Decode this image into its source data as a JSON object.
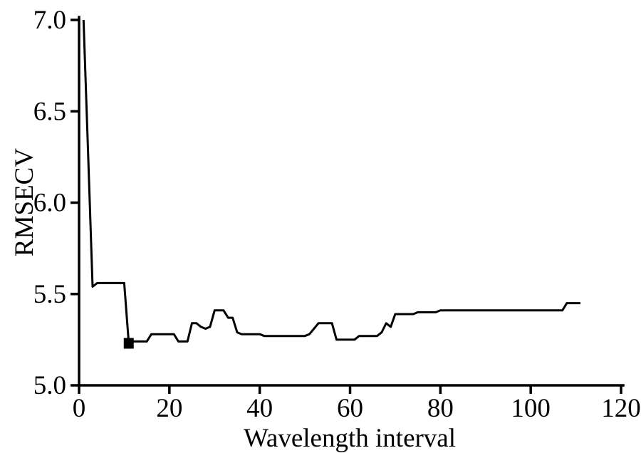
{
  "figure": {
    "background_color": "#ffffff",
    "line_color": "#000000",
    "axis_color": "#000000",
    "marker_color": "#000000"
  },
  "chart_data": {
    "type": "line",
    "title": "",
    "xlabel": "Wavelength interval",
    "ylabel": "RMSECV",
    "xlim": [
      0,
      120
    ],
    "ylim": [
      5.0,
      7.0
    ],
    "xticks": [
      0,
      20,
      40,
      60,
      80,
      100,
      120
    ],
    "xtick_labels": [
      "0",
      "20",
      "40",
      "60",
      "80",
      "100",
      "120"
    ],
    "yticks": [
      5.0,
      5.5,
      6.0,
      6.5,
      7.0
    ],
    "ytick_labels": [
      "5.0",
      "5.5",
      "6.0",
      "6.5",
      "7.0"
    ],
    "grid": false,
    "legend": null,
    "series": [
      {
        "name": "RMSECV",
        "x": [
          1,
          2,
          3,
          4,
          5,
          6,
          7,
          8,
          9,
          10,
          11,
          12,
          13,
          14,
          15,
          16,
          17,
          18,
          19,
          20,
          21,
          22,
          23,
          24,
          25,
          26,
          27,
          28,
          29,
          30,
          31,
          32,
          33,
          34,
          35,
          36,
          37,
          38,
          39,
          40,
          41,
          42,
          43,
          44,
          45,
          46,
          47,
          48,
          49,
          50,
          51,
          52,
          53,
          54,
          55,
          56,
          57,
          58,
          59,
          60,
          61,
          62,
          63,
          64,
          65,
          66,
          67,
          68,
          69,
          70,
          71,
          72,
          73,
          74,
          75,
          76,
          77,
          78,
          79,
          80,
          81,
          82,
          83,
          84,
          85,
          86,
          87,
          88,
          89,
          90,
          91,
          92,
          93,
          94,
          95,
          96,
          97,
          98,
          99,
          100,
          101,
          102,
          103,
          104,
          105,
          106,
          107,
          108,
          109,
          110,
          111
        ],
        "y": [
          7.0,
          6.27,
          5.54,
          5.56,
          5.56,
          5.56,
          5.56,
          5.56,
          5.56,
          5.56,
          5.23,
          5.24,
          5.24,
          5.24,
          5.24,
          5.28,
          5.28,
          5.28,
          5.28,
          5.28,
          5.28,
          5.24,
          5.24,
          5.24,
          5.34,
          5.34,
          5.32,
          5.31,
          5.32,
          5.41,
          5.41,
          5.41,
          5.37,
          5.37,
          5.29,
          5.28,
          5.28,
          5.28,
          5.28,
          5.28,
          5.27,
          5.27,
          5.27,
          5.27,
          5.27,
          5.27,
          5.27,
          5.27,
          5.27,
          5.27,
          5.28,
          5.31,
          5.34,
          5.34,
          5.34,
          5.34,
          5.25,
          5.25,
          5.25,
          5.25,
          5.25,
          5.27,
          5.27,
          5.27,
          5.27,
          5.27,
          5.29,
          5.34,
          5.32,
          5.39,
          5.39,
          5.39,
          5.39,
          5.39,
          5.4,
          5.4,
          5.4,
          5.4,
          5.4,
          5.41,
          5.41,
          5.41,
          5.41,
          5.41,
          5.41,
          5.41,
          5.41,
          5.41,
          5.41,
          5.41,
          5.41,
          5.41,
          5.41,
          5.41,
          5.41,
          5.41,
          5.41,
          5.41,
          5.41,
          5.41,
          5.41,
          5.41,
          5.41,
          5.41,
          5.41,
          5.41,
          5.41,
          5.45,
          5.45,
          5.45,
          5.45
        ]
      }
    ],
    "marker_point": {
      "x": 11,
      "y": 5.23,
      "shape": "filled-square"
    }
  }
}
